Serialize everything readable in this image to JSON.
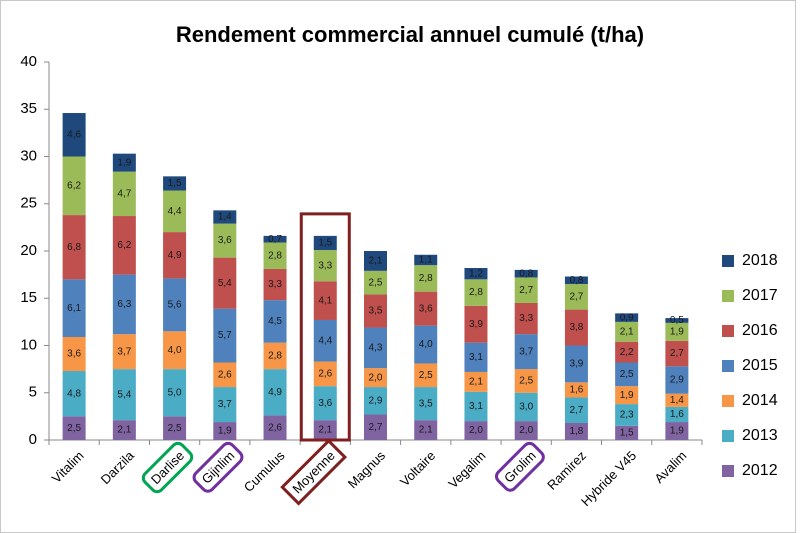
{
  "chart_data": {
    "type": "stacked_bar",
    "title": "Rendement commercial annuel cumulé (t/ha)",
    "categories": [
      "Vitalim",
      "Darzila",
      "Darlise",
      "Gijnlim",
      "Cumulus",
      "Moyenne",
      "Magnus",
      "Voltaire",
      "Vegalim",
      "Grolim",
      "Ramirez",
      "Hybride V45",
      "Avalim"
    ],
    "series": [
      {
        "name": "2012",
        "color": "#8064a2",
        "values": [
          2.5,
          2.1,
          2.5,
          1.9,
          2.6,
          2.1,
          2.7,
          2.1,
          2.0,
          2.0,
          1.8,
          1.5,
          1.9
        ],
        "value_labels": [
          "2,5",
          "2,1",
          "2,5",
          "1,9",
          "2,6",
          "2,1",
          "2,7",
          "2,1",
          "2,0",
          "2,0",
          "1,8",
          "1,5",
          "1,9"
        ]
      },
      {
        "name": "2013",
        "color": "#4bacc6",
        "values": [
          4.8,
          5.4,
          5.0,
          3.7,
          4.9,
          3.6,
          2.9,
          3.5,
          3.1,
          3.0,
          2.7,
          2.3,
          1.6
        ],
        "value_labels": [
          "4,8",
          "5,4",
          "5,0",
          "3,7",
          "4,9",
          "3,6",
          "2,9",
          "3,5",
          "3,1",
          "3,0",
          "2,7",
          "2,3",
          "1,6"
        ]
      },
      {
        "name": "2014",
        "color": "#f79646",
        "values": [
          3.6,
          3.7,
          4.0,
          2.6,
          2.8,
          2.6,
          2.0,
          2.5,
          2.1,
          2.5,
          1.6,
          1.9,
          1.4
        ],
        "value_labels": [
          "3,6",
          "3,7",
          "4,0",
          "2,6",
          "2,8",
          "2,6",
          "2,0",
          "2,5",
          "2,1",
          "2,5",
          "1,6",
          "1,9",
          "1,4"
        ]
      },
      {
        "name": "2015",
        "color": "#4f81bd",
        "values": [
          6.1,
          6.3,
          5.6,
          5.7,
          4.5,
          4.4,
          4.3,
          4.0,
          3.1,
          3.7,
          3.9,
          2.5,
          2.9
        ],
        "value_labels": [
          "6,1",
          "6,3",
          "5,6",
          "5,7",
          "4,5",
          "4,4",
          "4,3",
          "4,0",
          "3,1",
          "3,7",
          "3,9",
          "2,5",
          "2,9"
        ]
      },
      {
        "name": "2016",
        "color": "#c0504d",
        "values": [
          6.8,
          6.2,
          4.9,
          5.4,
          3.3,
          4.1,
          3.5,
          3.6,
          3.9,
          3.3,
          3.8,
          2.2,
          2.7
        ],
        "value_labels": [
          "6,8",
          "6,2",
          "4,9",
          "5,4",
          "3,3",
          "4,1",
          "3,5",
          "3,6",
          "3,9",
          "3,3",
          "3,8",
          "2,2",
          "2,7"
        ]
      },
      {
        "name": "2017",
        "color": "#9bbb59",
        "values": [
          6.2,
          4.7,
          4.4,
          3.6,
          2.8,
          3.3,
          2.5,
          2.8,
          2.8,
          2.7,
          2.7,
          2.1,
          1.9
        ],
        "value_labels": [
          "6,2",
          "4,7",
          "4,4",
          "3,6",
          "2,8",
          "3,3",
          "2,5",
          "2,8",
          "2,8",
          "2,7",
          "2,7",
          "2,1",
          "1,9"
        ]
      },
      {
        "name": "2018",
        "color": "#1f497d",
        "values": [
          4.6,
          1.9,
          1.5,
          1.4,
          0.7,
          1.5,
          2.1,
          1.1,
          1.2,
          0.8,
          0.8,
          0.9,
          0.5
        ],
        "value_labels": [
          "4,6",
          "1,9",
          "1,5",
          "1,4",
          "0,7",
          "1,5",
          "2,1",
          "1,1",
          "1,2",
          "0,8",
          "0,8",
          "0,9",
          "0,5"
        ]
      }
    ],
    "ylim": [
      0,
      40
    ],
    "yticks": [
      0,
      5,
      10,
      15,
      20,
      25,
      30,
      35,
      40
    ],
    "grid": false,
    "legend": "right"
  }
}
